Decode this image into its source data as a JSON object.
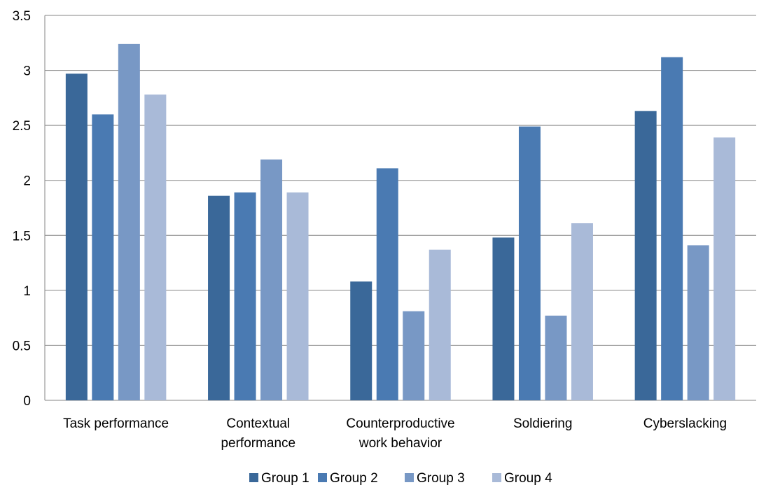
{
  "chart_data": {
    "type": "bar",
    "title": "",
    "xlabel": "",
    "ylabel": "",
    "ylim": [
      0,
      3.5
    ],
    "yticks": [
      "0",
      "0.5",
      "1",
      "1.5",
      "2",
      "2.5",
      "3",
      "3.5"
    ],
    "grid": true,
    "legend_position": "bottom",
    "categories": [
      [
        "Task performance"
      ],
      [
        "Contextual",
        "performance"
      ],
      [
        "Counterproductive",
        "work behavior"
      ],
      [
        "Soldiering"
      ],
      [
        "Cyberslacking"
      ]
    ],
    "series": [
      {
        "name": "Group 1",
        "color": "#3a6899",
        "values": [
          2.97,
          1.86,
          1.08,
          1.48,
          2.63
        ]
      },
      {
        "name": "Group 2",
        "color": "#4a7ab2",
        "values": [
          2.6,
          1.89,
          2.11,
          2.49,
          3.12
        ]
      },
      {
        "name": "Group 3",
        "color": "#7898c5",
        "values": [
          3.24,
          2.19,
          0.81,
          0.77,
          1.41
        ]
      },
      {
        "name": "Group 4",
        "color": "#a9bad8",
        "values": [
          2.78,
          1.89,
          1.37,
          1.61,
          2.39
        ]
      }
    ]
  }
}
